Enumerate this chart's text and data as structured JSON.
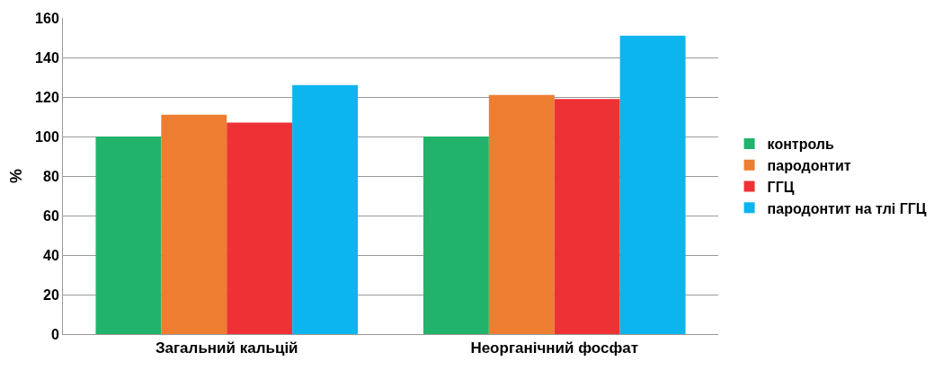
{
  "chart_data": {
    "type": "bar",
    "ylabel": "%",
    "categories": [
      "Загальний кальцій",
      "Неорганічний фосфат"
    ],
    "series": [
      {
        "name": "контроль",
        "color": "#21b36b",
        "values": [
          100,
          100
        ]
      },
      {
        "name": "пародонтит",
        "color": "#ed7d31",
        "values": [
          111,
          121
        ]
      },
      {
        "name": "ГГЦ",
        "color": "#ee3135",
        "values": [
          107,
          119
        ]
      },
      {
        "name": "пародонтит на тлі ГГЦ",
        "color": "#0cb5ee",
        "values": [
          126,
          151
        ]
      }
    ],
    "ylim": [
      0,
      160
    ],
    "yticks": [
      0,
      20,
      40,
      60,
      80,
      100,
      120,
      140,
      160
    ],
    "grid": "y",
    "legend": "right"
  }
}
